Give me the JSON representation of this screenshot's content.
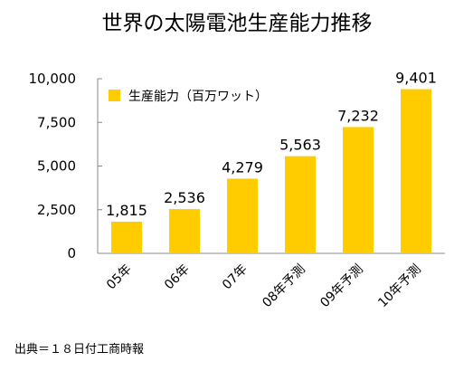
{
  "chart_data": {
    "type": "bar",
    "title": "世界の太陽電池生産能力推移",
    "categories": [
      "05年",
      "06年",
      "07年",
      "08年予測",
      "09年予測",
      "10年予測"
    ],
    "series": [
      {
        "name": "生産能力（百万ワット）",
        "values": [
          1815,
          2536,
          4279,
          5563,
          7232,
          9401
        ]
      }
    ],
    "data_labels": [
      "1,815",
      "2,536",
      "4,279",
      "5,563",
      "7,232",
      "9,401"
    ],
    "ylim": [
      0,
      10000
    ],
    "yticks": [
      0,
      2500,
      5000,
      7500,
      10000
    ],
    "ytick_labels": [
      "0",
      "2,500",
      "5,000",
      "7,500",
      "10,000"
    ],
    "xlabel": "",
    "ylabel": "",
    "grid": false,
    "legend_position": "top-left",
    "bar_color": "#FFCC00"
  },
  "source_note": "出典＝１８日付工商時報"
}
